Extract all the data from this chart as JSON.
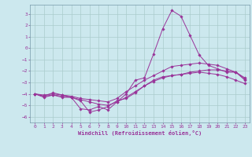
{
  "xlabel": "Windchill (Refroidissement éolien,°C)",
  "background_color": "#cce8ee",
  "line_color": "#993399",
  "grid_color": "#aacccc",
  "xlim": [
    -0.5,
    23.5
  ],
  "ylim": [
    -6.5,
    3.8
  ],
  "xticks": [
    0,
    1,
    2,
    3,
    4,
    5,
    6,
    7,
    8,
    9,
    10,
    11,
    12,
    13,
    14,
    15,
    16,
    17,
    18,
    19,
    20,
    21,
    22,
    23
  ],
  "yticks": [
    -6,
    -5,
    -4,
    -3,
    -2,
    -1,
    0,
    1,
    2,
    3
  ],
  "series": [
    {
      "x": [
        0,
        1,
        2,
        3,
        4,
        5,
        6,
        7,
        8,
        9,
        10,
        11,
        12,
        13,
        14,
        15,
        16,
        17,
        18,
        19,
        20,
        21,
        22,
        23
      ],
      "y": [
        -4.0,
        -4.2,
        -3.9,
        -4.1,
        -4.3,
        -5.3,
        -5.4,
        -5.1,
        -5.4,
        -4.7,
        -4.0,
        -2.8,
        -2.6,
        -0.5,
        1.7,
        3.3,
        2.8,
        1.1,
        -0.6,
        -1.5,
        -1.8,
        -2.1,
        -2.1,
        -2.6
      ]
    },
    {
      "x": [
        0,
        1,
        2,
        3,
        4,
        5,
        6,
        7,
        8,
        9,
        10,
        11,
        12,
        13,
        14,
        15,
        16,
        17,
        18,
        19,
        20,
        21,
        22,
        23
      ],
      "y": [
        -4.0,
        -4.3,
        -4.1,
        -4.3,
        -4.3,
        -4.6,
        -5.6,
        -5.4,
        -5.1,
        -4.6,
        -4.4,
        -3.9,
        -3.3,
        -2.8,
        -2.5,
        -2.4,
        -2.3,
        -2.1,
        -2.0,
        -1.9,
        -1.9,
        -2.0,
        -2.1,
        -2.7
      ]
    },
    {
      "x": [
        0,
        1,
        2,
        3,
        4,
        5,
        6,
        7,
        8,
        9,
        10,
        11,
        12,
        13,
        14,
        15,
        16,
        17,
        18,
        19,
        20,
        21,
        22,
        23
      ],
      "y": [
        -4.0,
        -4.1,
        -4.0,
        -4.1,
        -4.2,
        -4.4,
        -4.5,
        -4.6,
        -4.7,
        -4.4,
        -3.8,
        -3.3,
        -2.8,
        -2.4,
        -2.0,
        -1.6,
        -1.5,
        -1.4,
        -1.3,
        -1.4,
        -1.5,
        -1.8,
        -2.1,
        -2.8
      ]
    },
    {
      "x": [
        0,
        1,
        2,
        3,
        4,
        5,
        6,
        7,
        8,
        9,
        10,
        11,
        12,
        13,
        14,
        15,
        16,
        17,
        18,
        19,
        20,
        21,
        22,
        23
      ],
      "y": [
        -4.0,
        -4.2,
        -4.1,
        -4.2,
        -4.3,
        -4.5,
        -4.7,
        -4.9,
        -5.0,
        -4.7,
        -4.3,
        -3.8,
        -3.3,
        -2.9,
        -2.6,
        -2.4,
        -2.3,
        -2.2,
        -2.1,
        -2.2,
        -2.3,
        -2.5,
        -2.8,
        -3.1
      ]
    }
  ]
}
